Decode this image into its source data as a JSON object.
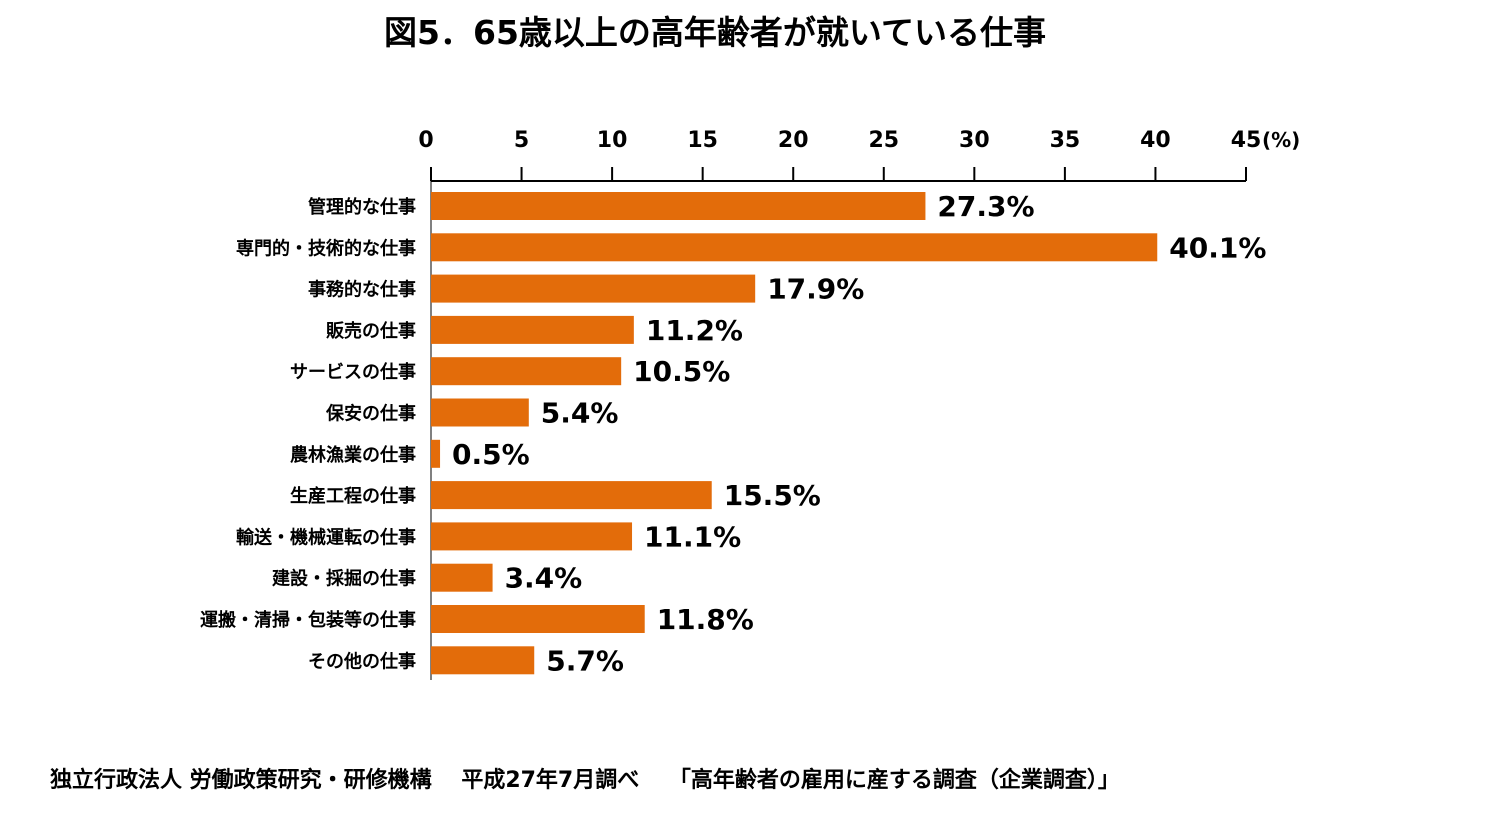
{
  "chart_data": {
    "type": "bar",
    "orientation": "horizontal",
    "title": "図5．65歳以上の高年齢者が就いている仕事",
    "xlim": [
      0,
      45
    ],
    "xticks": [
      "0",
      "5",
      "10",
      "15",
      "20",
      "25",
      "30",
      "35",
      "40",
      "45"
    ],
    "xunit": "(%)",
    "grid": false,
    "bar_color": "#E36C0A",
    "categories": [
      "管理的な仕事",
      "専門的・技術的な仕事",
      "事務的な仕事",
      "販売の仕事",
      "サービスの仕事",
      "保安の仕事",
      "農林漁業の仕事",
      "生産工程の仕事",
      "輸送・機械運転の仕事",
      "建設・採掘の仕事",
      "運搬・清掃・包装等の仕事",
      "その他の仕事"
    ],
    "values": [
      27.3,
      40.1,
      17.9,
      11.2,
      10.5,
      5.4,
      0.5,
      15.5,
      11.1,
      3.4,
      11.8,
      5.7
    ],
    "value_labels": [
      "27.3%",
      "40.1%",
      "17.9%",
      "11.2%",
      "10.5%",
      "5.4%",
      "0.5%",
      "15.5%",
      "11.1%",
      "3.4%",
      "11.8%",
      "5.7%"
    ]
  },
  "source_note": "独立行政法人 労働政策研究・研修機構　 平成27年7月調べ　 「高年齢者の雇用に産する調査（企業調査）」"
}
